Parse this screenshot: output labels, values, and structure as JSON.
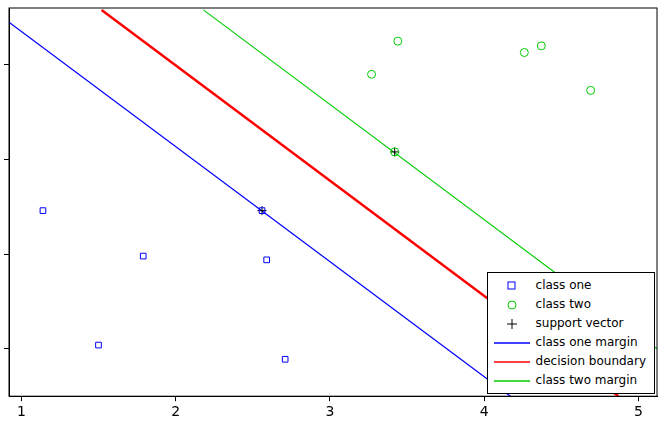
{
  "chart_data": {
    "type": "scatter",
    "xlim": [
      0.92,
      5.12
    ],
    "xticks": [
      1,
      2,
      3,
      4,
      5
    ],
    "ylim": [
      0.5,
      4.6
    ],
    "yticks": [
      1,
      2,
      3,
      4
    ],
    "grid": false,
    "tick_labels": "x",
    "legend": "lower right",
    "series": [
      {
        "name": "class one",
        "type": "scatter",
        "color": "#0000ff",
        "marker": "square",
        "x": [
          1.14,
          1.79,
          1.5,
          2.56,
          2.59,
          2.71
        ],
        "values": [
          2.46,
          1.98,
          1.04,
          2.46,
          1.94,
          0.89
        ]
      },
      {
        "name": "class two",
        "type": "scatter",
        "color": "#00cc00",
        "marker": "circle",
        "x": [
          3.27,
          3.44,
          3.42,
          4.26,
          4.37,
          4.69
        ],
        "values": [
          3.9,
          4.25,
          3.08,
          4.13,
          4.2,
          3.73
        ]
      },
      {
        "name": "support vector",
        "type": "scatter",
        "color": "#000000",
        "marker": "plus",
        "x": [
          2.56,
          3.42
        ],
        "values": [
          2.46,
          3.08
        ]
      },
      {
        "name": "class one margin",
        "type": "line",
        "color": "#0000ff",
        "line_style": "solid",
        "x": [
          0.92,
          4.17
        ],
        "values": [
          4.45,
          0.5
        ]
      },
      {
        "name": "decision boundary",
        "type": "line",
        "color": "#ff0000",
        "line_style": "solid",
        "x": [
          1.52,
          4.87
        ],
        "values": [
          4.58,
          0.5
        ]
      },
      {
        "name": "class two margin",
        "type": "line",
        "color": "#00cc00",
        "line_style": "solid",
        "x": [
          2.18,
          5.12
        ],
        "values": [
          4.58,
          1.0
        ]
      }
    ]
  }
}
